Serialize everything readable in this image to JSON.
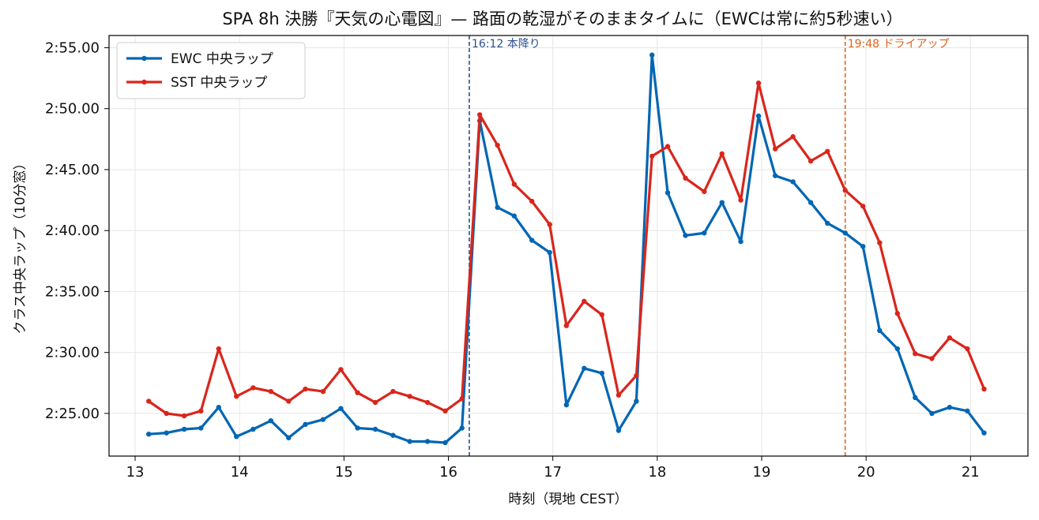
{
  "chart_data": {
    "type": "line",
    "title": "SPA 8h 決勝『天気の心電図』— 路面の乾湿がそのままタイムに（EWCは常に約5秒速い）",
    "xlabel": "時刻（現地 CEST）",
    "ylabel": "クラス中央ラップ（10分窓）",
    "xlim": [
      12.75,
      21.55
    ],
    "ylim": [
      141.5,
      176.0
    ],
    "x_ticks": [
      13,
      14,
      15,
      16,
      17,
      18,
      19,
      20,
      21
    ],
    "x_tick_labels": [
      "13",
      "14",
      "15",
      "16",
      "17",
      "18",
      "19",
      "20",
      "21"
    ],
    "y_ticks": [
      145,
      150,
      155,
      160,
      165,
      170,
      175
    ],
    "y_tick_labels": [
      "2:25.00",
      "2:30.00",
      "2:35.00",
      "2:40.00",
      "2:45.00",
      "2:50.00",
      "2:55.00"
    ],
    "grid": true,
    "legend_position": "upper-left",
    "series": [
      {
        "name": "EWC 中央ラップ",
        "color": "#0066b3",
        "x": [
          13.13,
          13.3,
          13.47,
          13.63,
          13.8,
          13.97,
          14.13,
          14.3,
          14.47,
          14.63,
          14.8,
          14.97,
          15.13,
          15.3,
          15.47,
          15.63,
          15.8,
          15.97,
          16.13,
          16.3,
          16.47,
          16.63,
          16.8,
          16.97,
          17.13,
          17.3,
          17.47,
          17.63,
          17.8,
          17.95,
          18.1,
          18.27,
          18.45,
          18.62,
          18.8,
          18.97,
          19.13,
          19.3,
          19.47,
          19.63,
          19.8,
          19.97,
          20.13,
          20.3,
          20.47,
          20.63,
          20.8,
          20.97,
          21.13
        ],
        "y": [
          143.3,
          143.4,
          143.7,
          143.8,
          145.5,
          143.1,
          143.7,
          144.4,
          143.0,
          144.1,
          144.5,
          145.4,
          143.8,
          143.7,
          143.2,
          142.7,
          142.7,
          142.6,
          143.8,
          169.0,
          161.9,
          161.2,
          159.2,
          158.2,
          145.7,
          148.7,
          148.3,
          143.6,
          146.0,
          174.4,
          163.1,
          159.6,
          159.8,
          162.3,
          159.1,
          169.4,
          164.5,
          164.0,
          162.3,
          160.6,
          159.8,
          158.7,
          151.8,
          150.3,
          146.3,
          145.0,
          145.5,
          145.2,
          143.4
        ]
      },
      {
        "name": "SST 中央ラップ",
        "color": "#d9261c",
        "x": [
          13.13,
          13.3,
          13.47,
          13.63,
          13.8,
          13.97,
          14.13,
          14.3,
          14.47,
          14.63,
          14.8,
          14.97,
          15.13,
          15.3,
          15.47,
          15.63,
          15.8,
          15.97,
          16.13,
          16.3,
          16.47,
          16.63,
          16.8,
          16.97,
          17.13,
          17.3,
          17.47,
          17.63,
          17.8,
          17.95,
          18.1,
          18.27,
          18.45,
          18.62,
          18.8,
          18.97,
          19.13,
          19.3,
          19.47,
          19.63,
          19.8,
          19.97,
          20.13,
          20.3,
          20.47,
          20.63,
          20.8,
          20.97,
          21.13
        ],
        "y": [
          146.0,
          145.0,
          144.8,
          145.2,
          150.3,
          146.4,
          147.1,
          146.8,
          146.0,
          147.0,
          146.8,
          148.6,
          146.7,
          145.9,
          146.8,
          146.4,
          145.9,
          145.2,
          146.2,
          169.5,
          167.0,
          163.8,
          162.4,
          160.5,
          152.2,
          154.2,
          153.1,
          146.5,
          148.1,
          166.1,
          166.9,
          164.3,
          163.2,
          166.3,
          162.5,
          172.1,
          166.7,
          167.7,
          165.7,
          166.5,
          163.3,
          162.0,
          159.0,
          153.2,
          149.9,
          149.5,
          151.2,
          150.3,
          147.0
        ]
      }
    ],
    "annotations": [
      {
        "x": 16.2,
        "label": "16:12 本降り",
        "color": "#2b4f8f",
        "style": "dashed"
      },
      {
        "x": 19.8,
        "label": "19:48 ドライアップ",
        "color": "#e0641a",
        "style": "dashed"
      }
    ]
  }
}
